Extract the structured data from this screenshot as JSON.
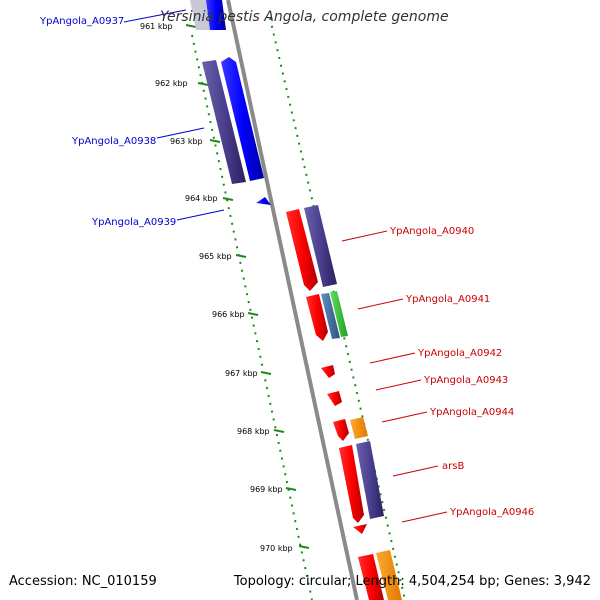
{
  "title": "Yersinia pestis Angola, complete genome",
  "footer": {
    "accession": "Accession: NC_010159",
    "topology": "Topology: circular; Length: 4,504,254 bp; Genes: 3,942"
  },
  "colors": {
    "forward_strand_label": "#0000cc",
    "reverse_strand_label": "#cc0000",
    "tick_mark": "#1a8c1a",
    "backbone": "#888888"
  },
  "ticks": [
    "961 kbp",
    "962 kbp",
    "963 kbp",
    "964 kbp",
    "965 kbp",
    "966 kbp",
    "967 kbp",
    "968 kbp",
    "969 kbp",
    "970 kbp"
  ],
  "forward_genes": [
    "YpAngola_A0937",
    "YpAngola_A0938",
    "YpAngola_A0939"
  ],
  "reverse_genes": [
    "YpAngola_A0940",
    "YpAngola_A0941",
    "YpAngola_A0942",
    "YpAngola_A0943",
    "YpAngola_A0944",
    "arsB",
    "YpAngola_A0946"
  ]
}
